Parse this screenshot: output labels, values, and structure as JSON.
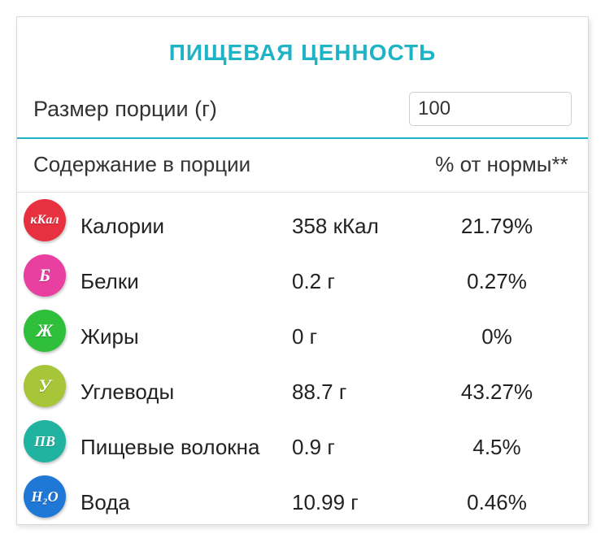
{
  "title": "ПИЩЕВАЯ ЦЕННОСТЬ",
  "serving": {
    "label": "Размер порции (г)",
    "value": "100"
  },
  "headers": {
    "content": "Содержание в порции",
    "percent": "% от нормы**"
  },
  "rows": [
    {
      "id": "calories",
      "icon_text": "кКал",
      "icon_bg": "#e73140",
      "icon_fs": "16px",
      "name": "Калории",
      "value": "358 кКал",
      "percent": "21.79%"
    },
    {
      "id": "protein",
      "icon_text": "Б",
      "icon_bg": "#e83fa0",
      "icon_fs": "22px",
      "name": "Белки",
      "value": "0.2 г",
      "percent": "0.27%"
    },
    {
      "id": "fat",
      "icon_text": "Ж",
      "icon_bg": "#2fbf3a",
      "icon_fs": "22px",
      "name": "Жиры",
      "value": "0 г",
      "percent": "0%"
    },
    {
      "id": "carbs",
      "icon_text": "У",
      "icon_bg": "#a7c539",
      "icon_fs": "22px",
      "name": "Углеводы",
      "value": "88.7 г",
      "percent": "43.27%"
    },
    {
      "id": "fiber",
      "icon_text": "ПВ",
      "icon_bg": "#1fb3a0",
      "icon_fs": "18px",
      "name": "Пищевые волокна",
      "value": "0.9 г",
      "percent": "4.5%"
    },
    {
      "id": "water",
      "icon_text": "H₂O",
      "icon_bg": "#1f77d6",
      "icon_fs": "18px",
      "name": "Вода",
      "value": "10.99 г",
      "percent": "0.46%"
    }
  ],
  "colors": {
    "accent": "#1fb3c6",
    "border": "#d9d9d9",
    "text": "#333333"
  }
}
